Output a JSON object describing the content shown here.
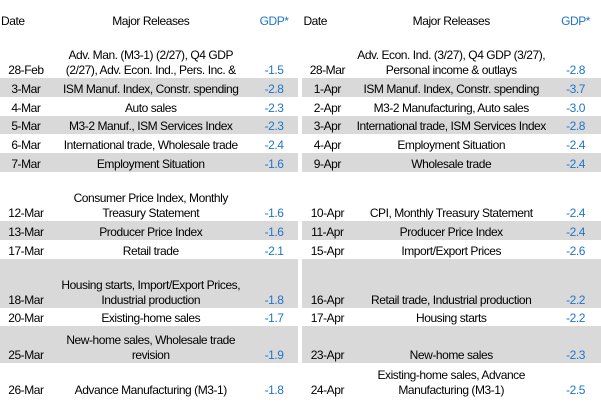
{
  "headers": {
    "date": "Date",
    "releases": "Major Releases",
    "gdp": "GDP*"
  },
  "rows": [
    {
      "left": {
        "date": "28-Feb",
        "releases": "Adv. Man. (M3-1) (2/27), Q4 GDP (2/27), Adv. Econ. Ind., Pers. Inc. &",
        "gdp": "-1.5"
      },
      "right": {
        "date": "28-Mar",
        "releases": "Adv. Econ. Ind. (3/27), Q4 GDP (3/27), Personal income & outlays",
        "gdp": "-2.8"
      }
    },
    {
      "left": {
        "date": "3-Mar",
        "releases": "ISM Manuf. Index, Constr. spending",
        "gdp": "-2.8"
      },
      "right": {
        "date": "1-Apr",
        "releases": "ISM Manuf. Index, Constr. spending",
        "gdp": "-3.7"
      }
    },
    {
      "left": {
        "date": "4-Mar",
        "releases": "Auto sales",
        "gdp": "-2.3"
      },
      "right": {
        "date": "2-Apr",
        "releases": "M3-2 Manufacturing, Auto sales",
        "gdp": "-3.0"
      }
    },
    {
      "left": {
        "date": "5-Mar",
        "releases": "M3-2 Manuf., ISM Services Index",
        "gdp": "-2.3"
      },
      "right": {
        "date": "3-Apr",
        "releases": "International trade, ISM Services Index",
        "gdp": "-2.8"
      }
    },
    {
      "left": {
        "date": "6-Mar",
        "releases": "International trade, Wholesale trade",
        "gdp": "-2.4"
      },
      "right": {
        "date": "4-Apr",
        "releases": "Employment Situation",
        "gdp": "-2.4"
      }
    },
    {
      "left": {
        "date": "7-Mar",
        "releases": "Employment Situation",
        "gdp": "-1.6"
      },
      "right": {
        "date": "9-Apr",
        "releases": "Wholesale trade",
        "gdp": "-2.4"
      }
    },
    {
      "left": {
        "date": "12-Mar",
        "releases": "Consumer Price Index, Monthly Treasury Statement",
        "gdp": "-1.6"
      },
      "right": {
        "date": "10-Apr",
        "releases": "CPI, Monthly Treasury Statement",
        "gdp": "-2.4"
      }
    },
    {
      "left": {
        "date": "13-Mar",
        "releases": "Producer Price Index",
        "gdp": "-1.6"
      },
      "right": {
        "date": "11-Apr",
        "releases": "Producer Price Index",
        "gdp": "-2.4"
      }
    },
    {
      "left": {
        "date": "17-Mar",
        "releases": "Retail trade",
        "gdp": "-2.1"
      },
      "right": {
        "date": "15-Apr",
        "releases": "Import/Export Prices",
        "gdp": "-2.6"
      }
    },
    {
      "left": {
        "date": "18-Mar",
        "releases": "Housing starts, Import/Export Prices, Industrial production",
        "gdp": "-1.8"
      },
      "right": {
        "date": "16-Apr",
        "releases": "Retail trade, Industrial production",
        "gdp": "-2.2"
      }
    },
    {
      "left": {
        "date": "20-Mar",
        "releases": "Existing-home sales",
        "gdp": "-1.7"
      },
      "right": {
        "date": "17-Apr",
        "releases": "Housing starts",
        "gdp": "-2.2"
      }
    },
    {
      "left": {
        "date": "25-Mar",
        "releases": "New-home sales, Wholesale trade revision",
        "gdp": "-1.9"
      },
      "right": {
        "date": "23-Apr",
        "releases": "New-home sales",
        "gdp": "-2.3"
      }
    },
    {
      "left": {
        "date": "26-Mar",
        "releases": "Advance Manufacturing (M3-1)",
        "gdp": "-1.8"
      },
      "right": {
        "date": "24-Apr",
        "releases": "Existing-home sales, Advance Manufacturing (M3-1)",
        "gdp": "-2.5"
      }
    }
  ]
}
